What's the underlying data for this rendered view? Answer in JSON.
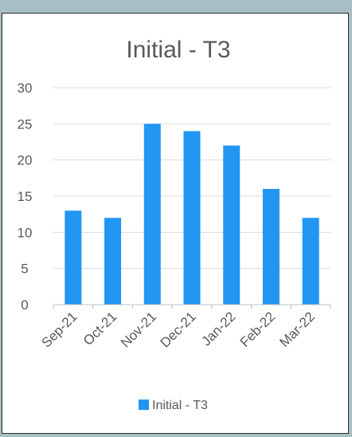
{
  "chart_data": {
    "type": "bar",
    "title": "Initial - T3",
    "categories": [
      "Sep-21",
      "Oct-21",
      "Nov-21",
      "Dec-21",
      "Jan-22",
      "Feb-22",
      "Mar-22"
    ],
    "series": [
      {
        "name": "Initial - T3",
        "values": [
          13,
          12,
          25,
          24,
          22,
          16,
          12
        ],
        "color": "#2196f3"
      }
    ],
    "yticks": [
      0,
      5,
      10,
      15,
      20,
      25,
      30
    ],
    "ylim": [
      0,
      30
    ],
    "grid": true,
    "legend_position": "bottom",
    "colors": {
      "background": "#a7bfc4",
      "plot_background": "#ffffff",
      "gridline": "#d9d9d9",
      "axis": "#bfbfbf",
      "text": "#595959"
    }
  }
}
